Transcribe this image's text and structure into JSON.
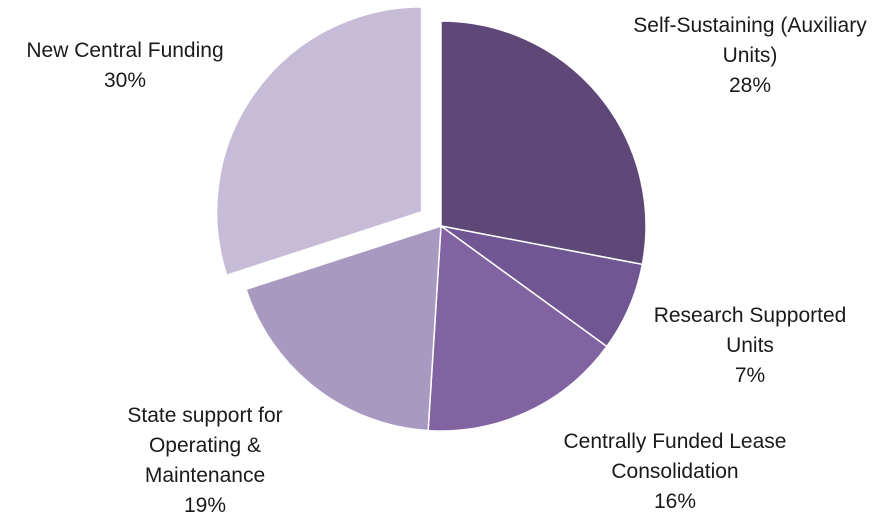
{
  "chart_data": {
    "type": "pie",
    "title": "",
    "slices": [
      {
        "name": "Self-Sustaining (Auxiliary Units)",
        "value": 28,
        "percent_label": "28%",
        "label_lines": [
          "Self-Sustaining (Auxiliary",
          "Units)"
        ],
        "color": "#5d4878",
        "exploded": false
      },
      {
        "name": "Research Supported Units",
        "value": 7,
        "percent_label": "7%",
        "label_lines": [
          "Research Supported",
          "Units"
        ],
        "color": "#705794",
        "exploded": false
      },
      {
        "name": "Centrally Funded Lease Consolidation",
        "value": 16,
        "percent_label": "16%",
        "label_lines": [
          "Centrally Funded Lease",
          "Consolidation"
        ],
        "color": "#8063a0",
        "exploded": false
      },
      {
        "name": "State support for Operating & Maintenance",
        "value": 19,
        "percent_label": "19%",
        "label_lines": [
          "State support for",
          "Operating &",
          "Maintenance"
        ],
        "color": "#a899c0",
        "exploded": false
      },
      {
        "name": "New Central Funding",
        "value": 30,
        "percent_label": "30%",
        "label_lines": [
          "New Central Funding"
        ],
        "color": "#c6bcd7",
        "exploded": true
      }
    ],
    "legend": "none"
  }
}
